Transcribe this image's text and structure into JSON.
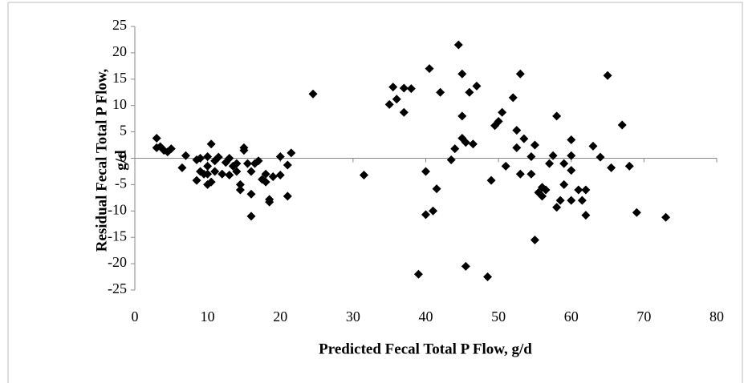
{
  "chart_data": {
    "type": "scatter",
    "xlabel": "Predicted Fecal Total P Flow, g/d",
    "ylabel": [
      "Residual Fecal Total P Flow,",
      "g/d"
    ],
    "color": "#000000",
    "xlim": [
      0,
      80
    ],
    "xticks": [
      0,
      10,
      20,
      30,
      40,
      50,
      60,
      70,
      80
    ],
    "ylim": [
      -25,
      25
    ],
    "yticks": [
      -25,
      -20,
      -15,
      -10,
      -5,
      0,
      5,
      10,
      15,
      20,
      25
    ],
    "x": [
      3,
      3,
      3.5,
      4,
      4.5,
      5,
      6.5,
      7,
      8.5,
      8.5,
      9,
      9,
      9.5,
      10,
      10,
      10,
      10,
      10.5,
      10.5,
      11,
      11,
      11.5,
      12,
      12.5,
      13,
      13,
      13.5,
      14,
      14,
      14.5,
      14.5,
      15,
      15,
      15.5,
      16,
      16,
      16,
      16.5,
      17,
      17.5,
      18,
      18,
      18.5,
      18.5,
      19,
      20,
      20,
      21,
      21,
      21.5,
      24.5,
      31.5,
      35,
      35.5,
      36,
      37,
      37,
      38,
      39,
      40,
      40,
      40.5,
      41,
      41.5,
      42,
      43.5,
      44,
      44.5,
      45,
      45,
      45,
      45.5,
      45.5,
      46,
      46.5,
      47,
      48.5,
      49,
      49.5,
      50,
      50.5,
      51,
      52,
      52.5,
      52.5,
      53,
      53,
      53.5,
      54.5,
      54.5,
      55,
      55,
      55.5,
      56,
      56,
      56.5,
      57,
      57.5,
      58,
      58,
      58.5,
      59,
      59,
      60,
      60,
      60,
      60,
      61,
      61.5,
      62,
      62,
      63,
      64,
      65,
      65.5,
      67,
      68,
      69,
      73
    ],
    "values": [
      3.8,
      2,
      2.2,
      1.5,
      1.2,
      1.8,
      -1.8,
      0.5,
      -0.3,
      -4.2,
      0,
      -2.5,
      -3,
      -1.5,
      0.3,
      -3,
      -5,
      -4.5,
      2.7,
      -2.5,
      -0.5,
      0.2,
      -3,
      -0.8,
      0,
      -3.2,
      -1.5,
      -1,
      -2.5,
      -5,
      -6,
      1.5,
      2,
      -1,
      -2.5,
      -6.8,
      -11,
      -1,
      -0.5,
      -4,
      -3,
      -4.5,
      -7.8,
      -8.3,
      -3.5,
      -3.2,
      0.3,
      -1.3,
      -7.2,
      1,
      12.2,
      -3.2,
      10.2,
      13.5,
      11.2,
      8.7,
      13.3,
      13.2,
      -22,
      -2.5,
      -10.7,
      17,
      -10,
      -5.8,
      12.5,
      -0.3,
      1.8,
      21.5,
      3.8,
      16,
      8,
      3,
      -20.5,
      12.5,
      2.7,
      13.7,
      -22.5,
      -4.2,
      6.2,
      7,
      8.7,
      -1.5,
      11.5,
      5.3,
      2,
      16,
      -3,
      3.7,
      -3,
      0.3,
      -15.5,
      2.5,
      -6.5,
      -7.2,
      -5.5,
      -6,
      -1,
      0.5,
      -9.3,
      8,
      -8,
      -1,
      -5,
      -8,
      3.5,
      0.5,
      -2.3,
      -6,
      -8,
      -10.8,
      -6,
      2.3,
      0.2,
      15.7,
      -1.8,
      6.3,
      -1.5,
      -10.3,
      -11.2
    ]
  }
}
